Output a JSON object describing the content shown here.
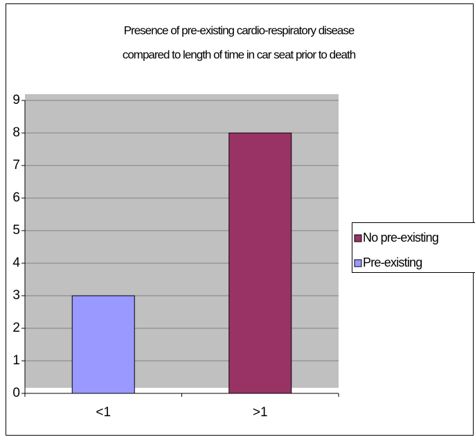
{
  "chart_data": {
    "type": "stacked_bar",
    "title": [
      "Presence of pre-existing cardio-respiratory disease",
      "compared to length of time in car seat prior to death"
    ],
    "categories": [
      "<1",
      ">1"
    ],
    "series": [
      {
        "name": "Pre-existing",
        "color": "#9999ff",
        "values": [
          3,
          0
        ]
      },
      {
        "name": "No pre-existing",
        "color": "#993366",
        "values": [
          0,
          8
        ]
      }
    ],
    "ylim": [
      0,
      9
    ],
    "yticks": [
      0,
      1,
      2,
      3,
      4,
      5,
      6,
      7,
      8,
      9
    ],
    "grid": true,
    "legend": "right",
    "plot_background": "#c0c0c0"
  }
}
